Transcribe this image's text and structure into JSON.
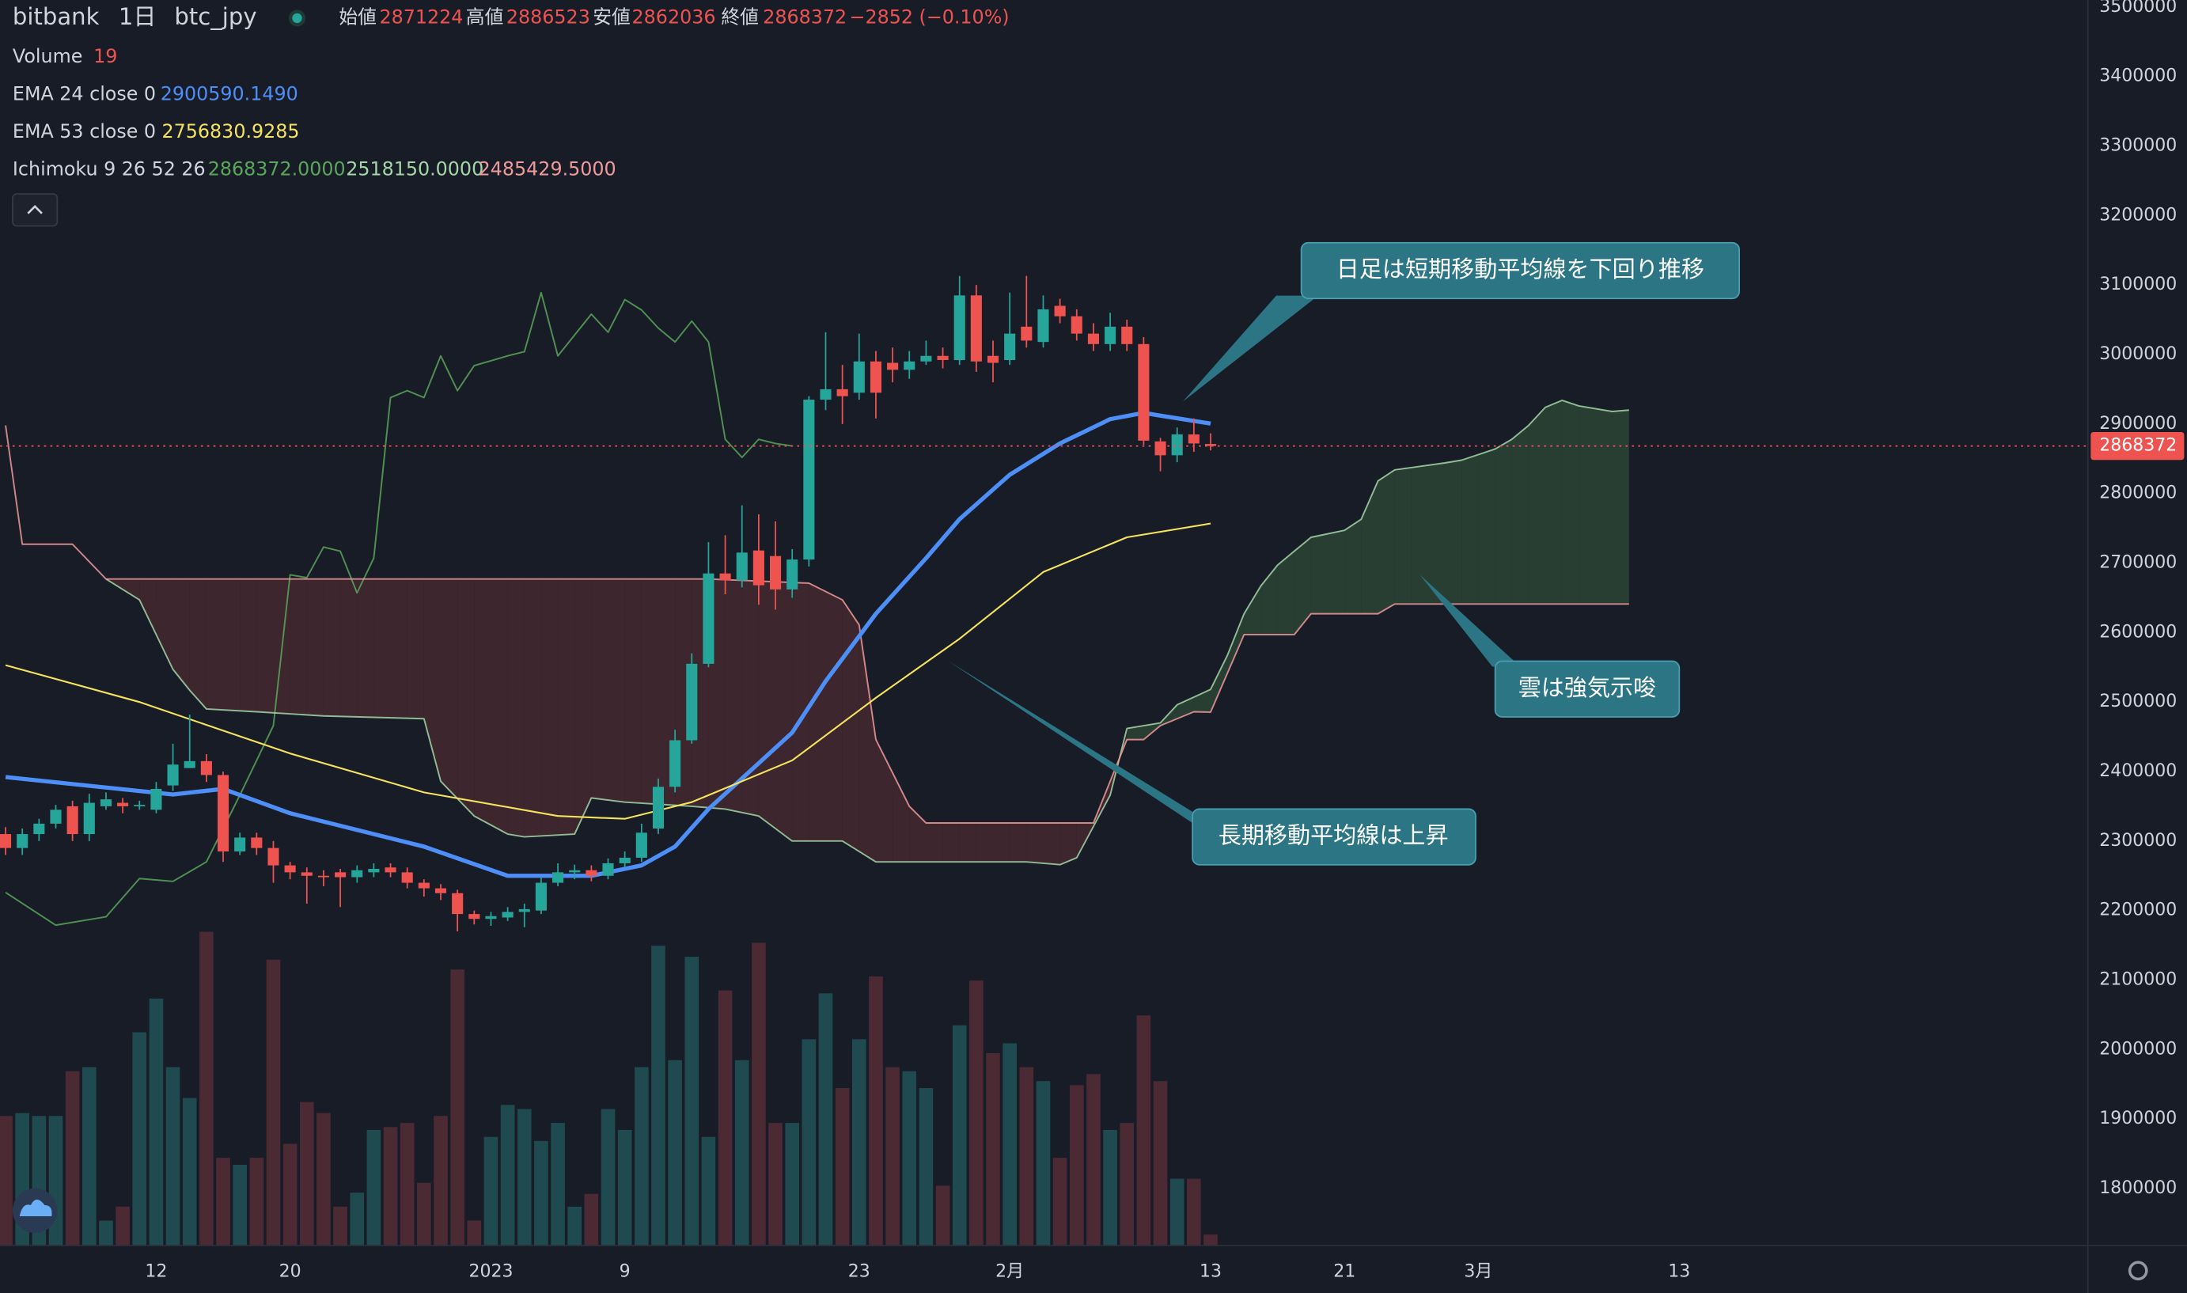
{
  "chart_data": {
    "type": "candlestick",
    "symbol": {
      "exchange": "bitbank",
      "interval": "1日",
      "pair": "btc_jpy"
    },
    "ohlc_labels": [
      "始値",
      "高値",
      "安値",
      "終値"
    ],
    "change_label": "−2852 (−0.10%)",
    "up_color": "#26a69a",
    "down_color": "#ef5350",
    "open": [
      2310000,
      2290000,
      2310000,
      2325000,
      2350000,
      2310000,
      2350000,
      2355000,
      2350000,
      2345000,
      2380000,
      2405000,
      2415000,
      2395000,
      2285000,
      2305000,
      2290000,
      2265000,
      2255000,
      2250000,
      2255000,
      2248000,
      2255000,
      2262000,
      2255000,
      2240000,
      2232000,
      2225000,
      2195000,
      2188000,
      2190000,
      2198000,
      2200000,
      2240000,
      2255000,
      2258000,
      2250000,
      2268000,
      2276000,
      2318000,
      2378000,
      2445000,
      2555000,
      2685000,
      2675000,
      2718000,
      2710000,
      2662000,
      2705000,
      2935000,
      2950000,
      2945000,
      2990000,
      2988000,
      2978000,
      2990000,
      2998000,
      2992000,
      3085000,
      2998000,
      2992000,
      3040000,
      3018000,
      3070000,
      3055000,
      3030000,
      3015000,
      3040000,
      3015000,
      2875000,
      2855000,
      2885000,
      2871224
    ],
    "high": [
      2320000,
      2318000,
      2332000,
      2352000,
      2358000,
      2368000,
      2370000,
      2362000,
      2358000,
      2385000,
      2440000,
      2482000,
      2425000,
      2400000,
      2312000,
      2312000,
      2300000,
      2270000,
      2262000,
      2258000,
      2260000,
      2265000,
      2268000,
      2268000,
      2262000,
      2245000,
      2238000,
      2230000,
      2200000,
      2198000,
      2205000,
      2210000,
      2248000,
      2268000,
      2266000,
      2265000,
      2275000,
      2285000,
      2325000,
      2390000,
      2460000,
      2570000,
      2730000,
      2740000,
      2783000,
      2770000,
      2760000,
      2720000,
      2940000,
      3032000,
      2985000,
      3030000,
      3005000,
      3010000,
      3005000,
      3020000,
      3010000,
      3113000,
      3100000,
      3020000,
      3089000,
      3113000,
      3085000,
      3080000,
      3065000,
      3045000,
      3060000,
      3050000,
      3025000,
      2880000,
      2895000,
      2908000,
      2886523
    ],
    "low": [
      2280000,
      2280000,
      2300000,
      2318000,
      2300000,
      2300000,
      2345000,
      2340000,
      2345000,
      2340000,
      2372000,
      2405000,
      2385000,
      2270000,
      2280000,
      2280000,
      2240000,
      2245000,
      2210000,
      2235000,
      2205000,
      2240000,
      2248000,
      2248000,
      2232000,
      2220000,
      2215000,
      2170000,
      2180000,
      2178000,
      2185000,
      2176000,
      2195000,
      2235000,
      2245000,
      2242000,
      2245000,
      2262000,
      2270000,
      2310000,
      2370000,
      2440000,
      2550000,
      2655000,
      2665000,
      2640000,
      2633000,
      2650000,
      2695000,
      2920000,
      2900000,
      2935000,
      2908000,
      2960000,
      2965000,
      2985000,
      2980000,
      2985000,
      2975000,
      2960000,
      2985000,
      3010000,
      3010000,
      3045000,
      3020000,
      3005000,
      3005000,
      3005000,
      2870000,
      2832000,
      2845000,
      2860000,
      2862036
    ],
    "close": [
      2290000,
      2310000,
      2325000,
      2345000,
      2310000,
      2355000,
      2360000,
      2350000,
      2352000,
      2375000,
      2410000,
      2415000,
      2395000,
      2285000,
      2305000,
      2290000,
      2265000,
      2255000,
      2250000,
      2248000,
      2248000,
      2258000,
      2260000,
      2255000,
      2240000,
      2232000,
      2225000,
      2195000,
      2188000,
      2192000,
      2198000,
      2202000,
      2240000,
      2255000,
      2258000,
      2250000,
      2268000,
      2276000,
      2312000,
      2378000,
      2445000,
      2555000,
      2685000,
      2675000,
      2715000,
      2668000,
      2662000,
      2705000,
      2935000,
      2950000,
      2940000,
      2990000,
      2945000,
      2978000,
      2990000,
      2998000,
      2992000,
      3085000,
      2990000,
      2988000,
      3030000,
      3020000,
      3065000,
      3055000,
      3030000,
      3015000,
      3040000,
      3015000,
      2876000,
      2855000,
      2885000,
      2872000,
      2868372
    ],
    "volume": {
      "name": "Volume",
      "up_color": "#1f4b50",
      "down_color": "#4b2a33",
      "values": [
        223,
        228,
        223,
        223,
        300,
        307,
        43,
        67,
        367,
        425,
        307,
        254,
        540,
        151,
        139,
        151,
        492,
        175,
        247,
        228,
        67,
        91,
        199,
        204,
        211,
        108,
        223,
        475,
        43,
        187,
        242,
        235,
        180,
        211,
        67,
        89,
        235,
        199,
        307,
        516,
        319,
        497,
        187,
        439,
        319,
        521,
        211,
        211,
        355,
        434,
        271,
        355,
        463,
        307,
        300,
        271,
        103,
        379,
        456,
        331,
        348,
        307,
        283,
        151,
        276,
        295,
        199,
        211,
        396,
        283,
        115,
        115,
        19
      ]
    },
    "ema": [
      {
        "name": "EMA 24 close 0",
        "color": "#4d8ef7",
        "width": 3,
        "x": [
          0,
          10,
          13,
          17,
          25,
          30,
          35,
          38,
          40,
          42,
          44,
          47,
          49,
          52,
          55,
          57,
          60,
          63,
          66,
          68,
          69,
          72
        ],
        "values": [
          2392000,
          2367000,
          2375000,
          2340000,
          2292000,
          2250000,
          2250000,
          2265000,
          2292000,
          2346000,
          2390000,
          2456000,
          2530000,
          2627000,
          2707000,
          2763000,
          2827000,
          2872000,
          2907000,
          2916000,
          2912000,
          2900590.149
        ],
        "last_value_label": "2900590.1490"
      },
      {
        "name": "EMA 53 close 0",
        "color": "#f5e35f",
        "width": 1.2,
        "x": [
          0,
          8,
          17,
          25,
          33,
          37,
          41,
          47,
          52,
          57,
          62,
          67,
          72
        ],
        "values": [
          2553000,
          2500000,
          2426000,
          2370000,
          2336000,
          2332000,
          2356000,
          2416000,
          2506000,
          2591000,
          2687000,
          2737000,
          2756830.9285
        ],
        "last_value_label": "2756830.9285"
      }
    ],
    "ichimoku": {
      "name": "Ichimoku 9 26 52 26",
      "cloud_up_color": "#2e4a38",
      "cloud_down_color": "#4a2a30",
      "lines": [
        {
          "color": "#5aa65a",
          "x": [
            0,
            3,
            6,
            8,
            10,
            12,
            14,
            16,
            17,
            18,
            19,
            20,
            21,
            22,
            23,
            24,
            25,
            26,
            27,
            28,
            30,
            31,
            32,
            33,
            34,
            35,
            36,
            37,
            38,
            39,
            40,
            41,
            42,
            43,
            44,
            45,
            46,
            47
          ],
          "values": [
            2226000,
            2179000,
            2191000,
            2246000,
            2242000,
            2270000,
            2366000,
            2466000,
            2683000,
            2679000,
            2723000,
            2717000,
            2657000,
            2707000,
            2938000,
            2948000,
            2938000,
            2998000,
            2948000,
            2984000,
            2998000,
            3004000,
            3089000,
            2998000,
            3028000,
            3058000,
            3032000,
            3079000,
            3064000,
            3038000,
            3018000,
            3048000,
            3018000,
            2878000,
            2852000,
            2878000,
            2872000,
            2868372
          ],
          "last_value_label": "2868372.0000"
        },
        {
          "color": "#a5d6a7",
          "x": [
            6,
            8,
            10,
            11,
            12,
            15,
            19,
            25,
            26,
            28,
            30,
            31,
            34,
            35,
            37,
            41,
            43,
            45,
            47,
            50,
            52,
            61,
            63,
            64,
            66,
            67,
            69,
            70,
            72,
            73,
            74,
            75,
            76,
            77,
            78,
            80,
            81,
            82,
            83,
            86,
            87,
            89,
            90,
            91,
            92,
            93,
            94,
            96,
            97
          ],
          "values": [
            2677000,
            2647000,
            2547000,
            2517000,
            2490000,
            2486000,
            2480000,
            2476000,
            2386000,
            2336000,
            2310000,
            2306000,
            2310000,
            2362000,
            2356000,
            2350000,
            2346000,
            2336000,
            2300000,
            2300000,
            2270000,
            2270000,
            2266000,
            2276000,
            2366000,
            2462000,
            2470000,
            2496000,
            2518150,
            2567000,
            2627000,
            2667000,
            2697000,
            2717000,
            2737000,
            2747000,
            2763000,
            2818000,
            2834000,
            2844000,
            2848000,
            2864000,
            2878000,
            2898000,
            2924000,
            2934000,
            2926000,
            2918000,
            2920000
          ],
          "last_value_label": "2518150.0000"
        },
        {
          "color": "#ef9a9a",
          "x": [
            0,
            1,
            4,
            6,
            42,
            48,
            50,
            51,
            52,
            54,
            55,
            65,
            67,
            68,
            69,
            71,
            72,
            74,
            77,
            78,
            82,
            83,
            97
          ],
          "values": [
            2898000,
            2727000,
            2727000,
            2677000,
            2677000,
            2671000,
            2647000,
            2611000,
            2446000,
            2350000,
            2326000,
            2326000,
            2446000,
            2446000,
            2466000,
            2486000,
            2485429.5,
            2597000,
            2597000,
            2627000,
            2627000,
            2641000,
            2641000
          ],
          "last_value_label": "2485429.5000"
        }
      ]
    },
    "annotations": [
      "日足は短期移動平均線を下回り推移",
      "雲は強気示唆",
      "長期移動平均線は上昇"
    ],
    "xlim": [
      -0.33,
      124.42
    ],
    "xticks": [
      {
        "value": 9,
        "label": "12"
      },
      {
        "value": 17,
        "label": "20"
      },
      {
        "value": 29,
        "label": "2023"
      },
      {
        "value": 37,
        "label": "9"
      },
      {
        "value": 51,
        "label": "23"
      },
      {
        "value": 60,
        "label": "2月"
      },
      {
        "value": 72,
        "label": "13"
      },
      {
        "value": 80,
        "label": "21"
      },
      {
        "value": 88,
        "label": "3月"
      },
      {
        "value": 100,
        "label": "13"
      }
    ],
    "ylim": [
      1718000,
      3510000
    ],
    "yticks": [
      1800000,
      1900000,
      2000000,
      2100000,
      2200000,
      2300000,
      2400000,
      2500000,
      2600000,
      2700000,
      2800000,
      2900000,
      3000000,
      3100000,
      3200000,
      3300000,
      3400000,
      3500000
    ],
    "grid": false
  }
}
